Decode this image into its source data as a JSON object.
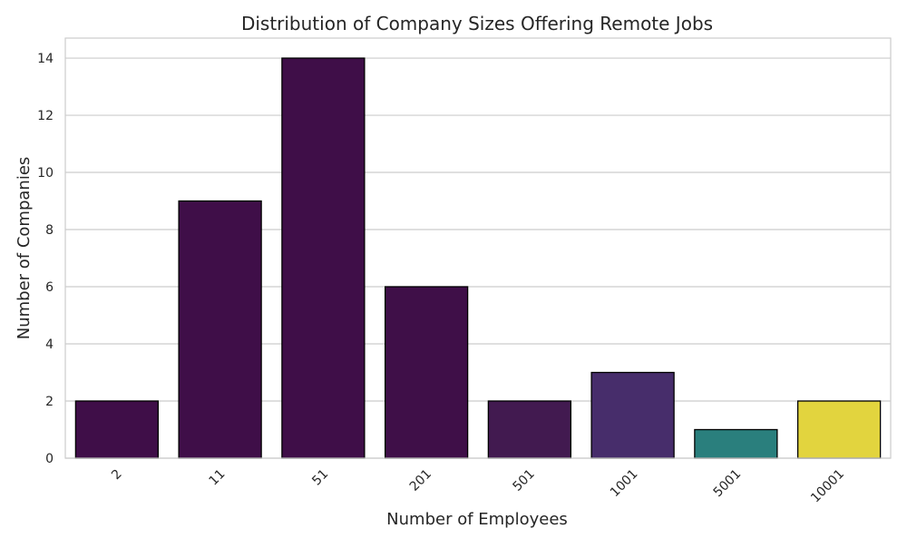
{
  "chart_data": {
    "type": "bar",
    "title": "Distribution of Company Sizes Offering Remote Jobs",
    "xlabel": "Number of Employees",
    "ylabel": "Number of Companies",
    "categories": [
      "2",
      "11",
      "51",
      "201",
      "501",
      "1001",
      "5001",
      "10001"
    ],
    "values": [
      2,
      9,
      14,
      6,
      2,
      3,
      1,
      2
    ],
    "bar_colors": [
      "#3f0e48",
      "#3f0e48",
      "#3f0e48",
      "#3f0f48",
      "#421a50",
      "#472d6b",
      "#2a7f7d",
      "#e2d43e"
    ],
    "ylim": [
      0,
      14.7
    ],
    "yticks": [
      0,
      2,
      4,
      6,
      8,
      10,
      12,
      14
    ],
    "grid": true,
    "legend": "none"
  }
}
